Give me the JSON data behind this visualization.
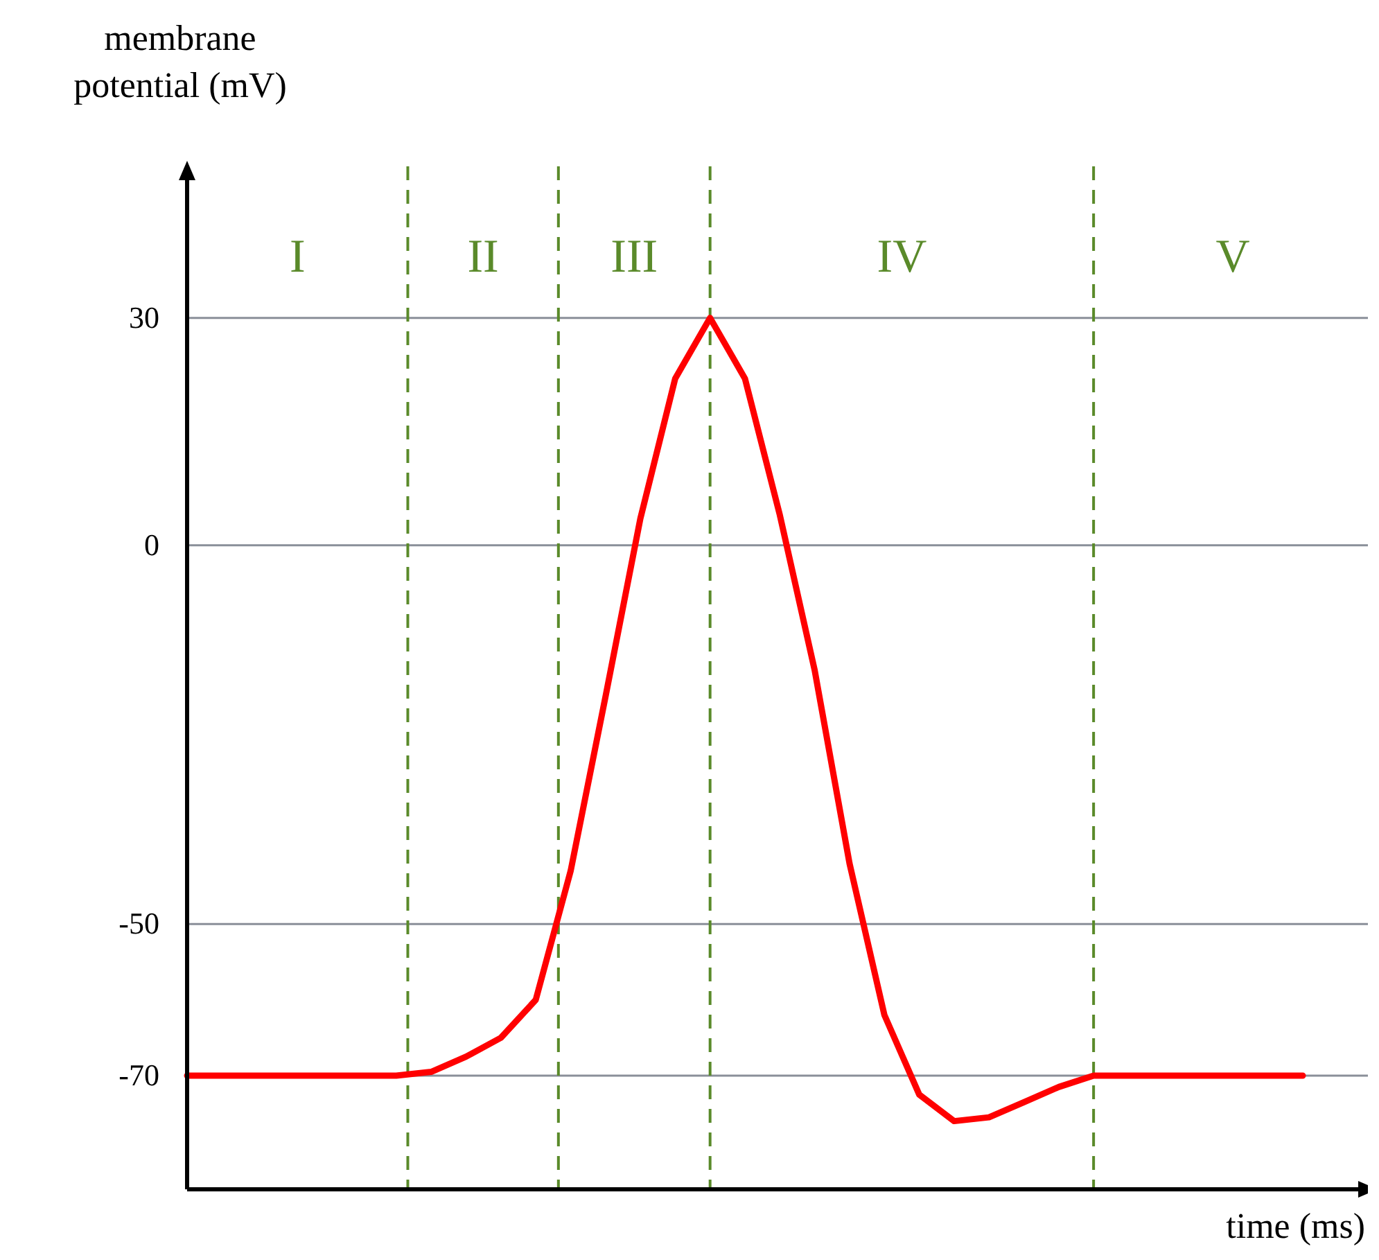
{
  "chart_data": {
    "type": "line",
    "xlabel": "time (ms)",
    "ylabel": "membrane potential (mV)",
    "ylim": [
      -85,
      50
    ],
    "yticks": [
      -70,
      -50,
      0,
      30
    ],
    "grid": "y",
    "tick_labels": "y",
    "categories": [
      null,
      null,
      null,
      null,
      null,
      null,
      null,
      null,
      null,
      null,
      null,
      null,
      null,
      null,
      null,
      null,
      null,
      null,
      null,
      null,
      null,
      null,
      null,
      null,
      null,
      null,
      null,
      null,
      null,
      null,
      null,
      null,
      null
    ],
    "series": [
      {
        "color": "#ff0000",
        "values": [
          -70,
          -70,
          -70,
          -70,
          -70,
          -70,
          -70,
          -69.5,
          -67.5,
          -65,
          -60,
          -43,
          -20,
          3.5,
          22,
          30,
          22,
          4,
          -16.5,
          -42,
          -62,
          -72.5,
          -76,
          -75.5,
          -73.5,
          -71.5,
          -70,
          -70,
          -70,
          -70,
          -70,
          -70,
          -70
        ]
      }
    ],
    "annotations": [
      "I",
      "II",
      "III",
      "IV",
      "V"
    ]
  }
}
